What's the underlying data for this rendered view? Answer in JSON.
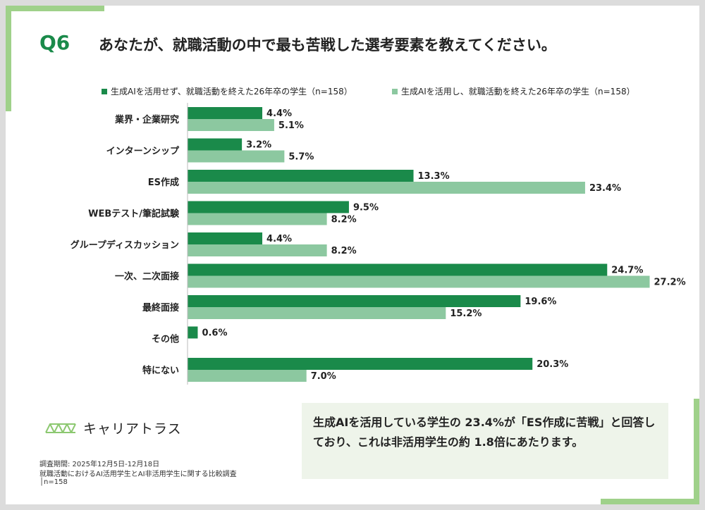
{
  "title": {
    "label": "Q6",
    "question": "あなたが、就職活動の中で最も苦戦した選考要素を教えてください。"
  },
  "colors": {
    "series_dark": "#1a8a4a",
    "series_light": "#8cc8a0",
    "accent": "#9fd18a"
  },
  "chart_data": {
    "type": "bar",
    "orientation": "horizontal",
    "categories": [
      "業界・企業研究",
      "インターンシップ",
      "ES作成",
      "WEBテスト/筆記試験",
      "グループディスカッション",
      "一次、二次面接",
      "最終面接",
      "その他",
      "特にない"
    ],
    "series": [
      {
        "name": "生成AIを活用せず、就職活動を終えた26年卒の学生（n=158）",
        "values": [
          4.4,
          3.2,
          13.3,
          9.5,
          4.4,
          24.7,
          19.6,
          0.6,
          20.3
        ]
      },
      {
        "name": "生成AIを活用し、就職活動を終えた26年卒の学生（n=158）",
        "values": [
          5.1,
          5.7,
          23.4,
          8.2,
          8.2,
          27.2,
          15.2,
          null,
          7.0
        ]
      }
    ],
    "value_suffix": "%",
    "legend_position": "top",
    "grid": false
  },
  "brand": {
    "name": "キャリアトラス",
    "icon": "triangle-lattice-icon"
  },
  "footer": {
    "period": "調査期間: 2025年12月5日-12月18日",
    "survey": "就職活動におけるAI活用学生とAI非活用学生に関する比較調査",
    "sample": "│n=158"
  },
  "callout": {
    "text": "生成AIを活用している学生の 23.4%が「ES作成に苦戦」と回答しており、これは非活用学生の約 1.8倍にあたります。"
  }
}
